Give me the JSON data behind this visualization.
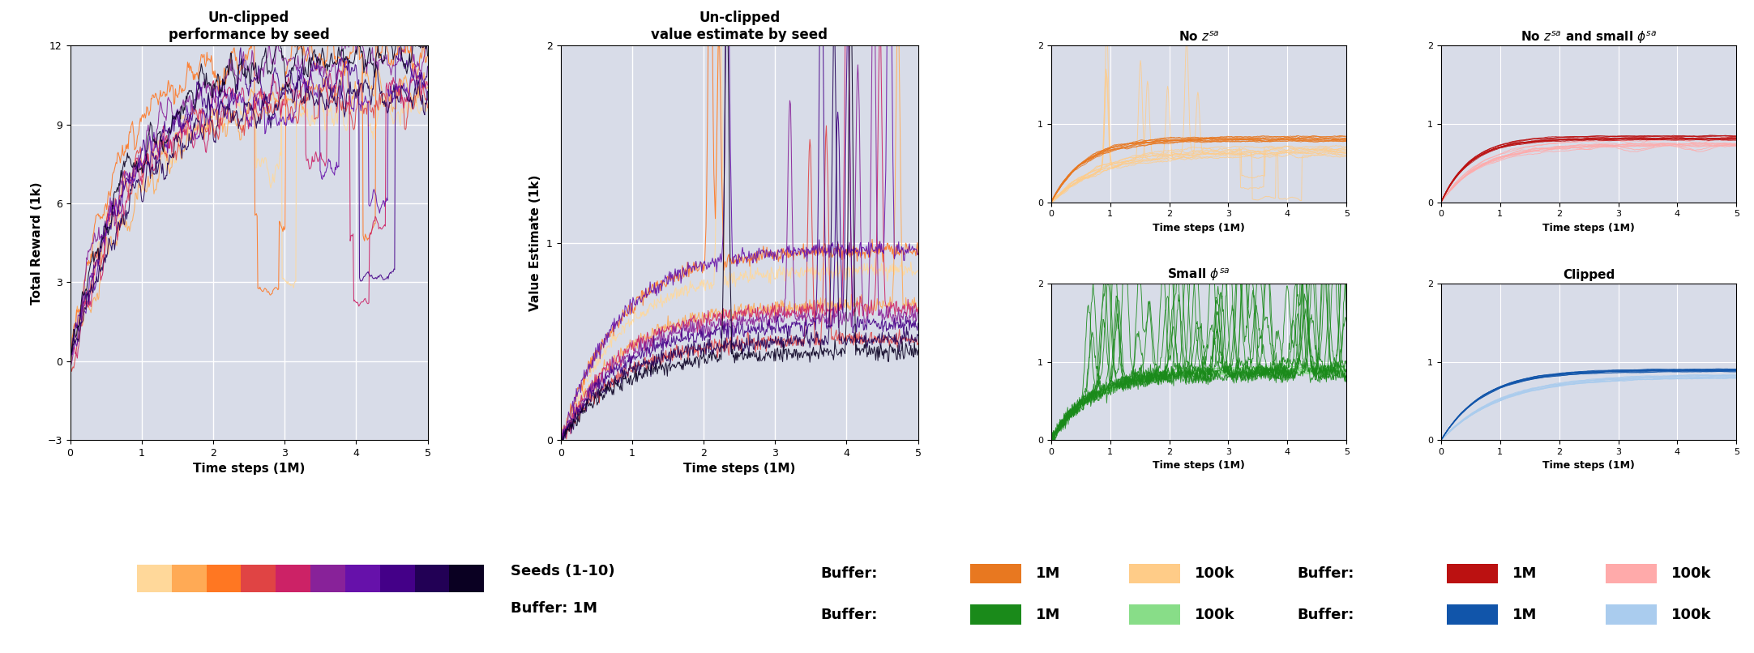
{
  "seed_colors": [
    "#FFD89A",
    "#FFAA55",
    "#FF7722",
    "#E04444",
    "#CC2266",
    "#882299",
    "#6611AA",
    "#440088",
    "#220055",
    "#0A0022"
  ],
  "orange_1M": "#E87820",
  "orange_100k": "#FFCC88",
  "red_1M": "#BB1111",
  "red_100k": "#FFAAAA",
  "green_1M": "#1A8A1A",
  "green_100k": "#88DD88",
  "blue_1M": "#1155AA",
  "blue_100k": "#AACCEE",
  "panel_bg": "#D8DCE8",
  "titles": [
    "Un-clipped\nperformance by seed",
    "Un-clipped\nvalue estimate by seed",
    "No $z^{sa}$",
    "No $z^{sa}$ and small $\\phi^{sa}$",
    "Small $\\phi^{sa}$",
    "Clipped"
  ],
  "ylabel_left": "Total Reward (1k)",
  "ylabel_mid": "Value Estimate (1k)",
  "xlabel": "Time steps (1M)",
  "xlim": [
    0,
    5
  ],
  "ylim_left": [
    -3,
    12
  ],
  "ylim_mid": [
    0,
    2
  ],
  "ylim_small": [
    0,
    2
  ],
  "yticks_left": [
    -3,
    0,
    3,
    6,
    9,
    12
  ],
  "yticks_mid": [
    0,
    1,
    2
  ],
  "yticks_small": [
    0,
    1,
    2
  ],
  "xticks": [
    0,
    1,
    2,
    3,
    4,
    5
  ]
}
